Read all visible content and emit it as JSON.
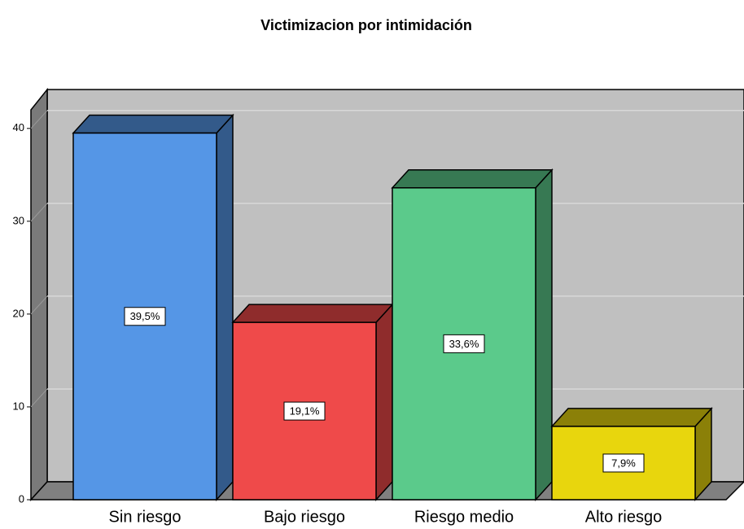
{
  "chart_data": {
    "type": "bar3d",
    "title": "Victimizacion por intimidación",
    "categories": [
      "Sin riesgo",
      "Bajo riesgo",
      "Riesgo medio",
      "Alto riesgo"
    ],
    "values": [
      39.5,
      19.1,
      33.6,
      7.9
    ],
    "value_labels": [
      "39,5%",
      "19,1%",
      "33,6%",
      "7,9%"
    ],
    "colors": [
      "#5596e6",
      "#ef4a4a",
      "#5bca8b",
      "#e8d60d"
    ],
    "ylim": [
      0,
      42
    ],
    "yticks": [
      0,
      10,
      20,
      30,
      40
    ],
    "grid": true
  }
}
